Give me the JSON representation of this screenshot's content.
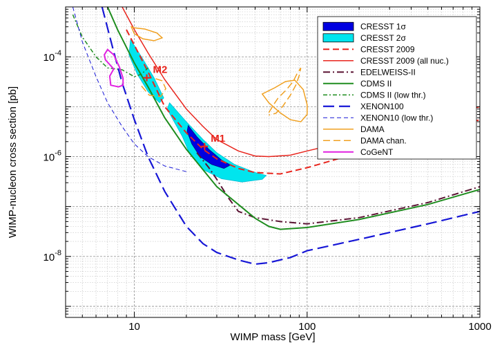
{
  "chart_data": {
    "type": "line",
    "xscale": "log",
    "yscale": "log",
    "xlim": [
      4,
      1000
    ],
    "ylim": [
      6e-10,
      0.001
    ],
    "xlabel": "WIMP mass [GeV]",
    "ylabel": "WIMP-nucleon cross section [pb]",
    "grid": true,
    "legend_position": "top-right",
    "x_ticks": [
      {
        "value": 10,
        "label": "10"
      },
      {
        "value": 100,
        "label": "100"
      },
      {
        "value": 1000,
        "label": "1000"
      }
    ],
    "y_ticks": [
      {
        "value": 0.0001,
        "base": "10",
        "exp": "-4"
      },
      {
        "value": 1e-06,
        "base": "10",
        "exp": "-6"
      },
      {
        "value": 1e-08,
        "base": "10",
        "exp": "-8"
      }
    ],
    "regions": [
      {
        "name": "CRESST 2σ",
        "color": "#00e5ee",
        "stroke": "#00bcd4",
        "points": [
          [
            16,
            1.2e-05
          ],
          [
            20,
            5e-06
          ],
          [
            25,
            2.2e-06
          ],
          [
            30,
            1.2e-06
          ],
          [
            38,
            7e-07
          ],
          [
            50,
            4.8e-07
          ],
          [
            58,
            4.2e-07
          ],
          [
            55,
            3.5e-07
          ],
          [
            42,
            3.1e-07
          ],
          [
            32,
            3.6e-07
          ],
          [
            25,
            5.5e-07
          ],
          [
            21,
            1.1e-06
          ],
          [
            19,
            2.5e-06
          ],
          [
            16.5,
            6e-06
          ],
          [
            15.5,
            9e-06
          ]
        ]
      },
      {
        "name": "CRESST 2σ",
        "color": "#00e5ee",
        "stroke": "#00bcd4",
        "points": [
          [
            9.5,
            0.00022
          ],
          [
            11,
            0.0001
          ],
          [
            13,
            3.8e-05
          ],
          [
            14.8,
            1.5e-05
          ],
          [
            14,
            1.2e-05
          ],
          [
            12,
            2e-05
          ],
          [
            10.4,
            4.5e-05
          ],
          [
            9.3,
            0.00011
          ]
        ]
      },
      {
        "name": "CRESST 1σ",
        "color": "#0000e0",
        "stroke": "#000080",
        "points": [
          [
            20.5,
            4.2e-06
          ],
          [
            23,
            2.5e-06
          ],
          [
            27,
            1.4e-06
          ],
          [
            32,
            8.5e-07
          ],
          [
            36,
            6.8e-07
          ],
          [
            33,
            5.8e-07
          ],
          [
            28,
            7e-07
          ],
          [
            24,
            1e-06
          ],
          [
            21.5,
            1.8e-06
          ],
          [
            20.2,
            3.2e-06
          ]
        ]
      }
    ],
    "series": [
      {
        "name": "CRESST 1σ",
        "color": "#0000e0",
        "dash": "none",
        "width": 1,
        "legend_type": "fill",
        "points": []
      },
      {
        "name": "CRESST 2σ",
        "color": "#00e5ee",
        "dash": "none",
        "width": 1,
        "legend_type": "fill",
        "points": []
      },
      {
        "name": "CRESST 2009",
        "color": "#e8241c",
        "dash": "9,5",
        "width": 2,
        "points": [
          [
            9,
            0.00035
          ],
          [
            12,
            5e-05
          ],
          [
            15,
            1e-05
          ],
          [
            20,
            3e-06
          ],
          [
            25,
            1.4e-06
          ],
          [
            30,
            9e-07
          ],
          [
            40,
            5.8e-07
          ],
          [
            50,
            4.8e-07
          ],
          [
            70,
            4.5e-07
          ],
          [
            100,
            6e-07
          ],
          [
            200,
            1.2e-06
          ],
          [
            500,
            2.7e-06
          ],
          [
            1000,
            5.5e-06
          ]
        ]
      },
      {
        "name": "CRESST 2009 (all nuc.)",
        "color": "#e8241c",
        "dash": "none",
        "width": 1.5,
        "points": [
          [
            8.5,
            0.001
          ],
          [
            10,
            0.00035
          ],
          [
            12,
            0.00012
          ],
          [
            15,
            3.5e-05
          ],
          [
            20,
            9e-06
          ],
          [
            25,
            4e-06
          ],
          [
            30,
            2.2e-06
          ],
          [
            40,
            1.3e-06
          ],
          [
            50,
            1.03e-06
          ],
          [
            60,
            1e-06
          ],
          [
            80,
            1.07e-06
          ],
          [
            100,
            1.3e-06
          ],
          [
            200,
            2.3e-06
          ],
          [
            500,
            5e-06
          ],
          [
            1000,
            1e-05
          ]
        ]
      },
      {
        "name": "EDELWEISS-II",
        "color": "#5a1232",
        "dash": "10,4,2,4",
        "width": 2,
        "points": [
          [
            23,
            1.2e-06
          ],
          [
            27,
            6e-07
          ],
          [
            30,
            3.5e-07
          ],
          [
            35,
            1.5e-07
          ],
          [
            40,
            8e-08
          ],
          [
            50,
            6e-08
          ],
          [
            70,
            5e-08
          ],
          [
            100,
            4.5e-08
          ],
          [
            200,
            6e-08
          ],
          [
            500,
            1.2e-07
          ],
          [
            1000,
            2.5e-07
          ]
        ]
      },
      {
        "name": "CDMS II",
        "color": "#1e8c1e",
        "dash": "none",
        "width": 2,
        "points": [
          [
            7,
            0.001
          ],
          [
            8,
            0.00035
          ],
          [
            10,
            7.5e-05
          ],
          [
            12,
            2.5e-05
          ],
          [
            15,
            6e-06
          ],
          [
            20,
            1.4e-06
          ],
          [
            30,
            2.5e-07
          ],
          [
            40,
            1.1e-07
          ],
          [
            50,
            5.8e-08
          ],
          [
            60,
            4e-08
          ],
          [
            70,
            3.5e-08
          ],
          [
            100,
            3.8e-08
          ],
          [
            200,
            5.5e-08
          ],
          [
            500,
            1.1e-07
          ],
          [
            1000,
            2.2e-07
          ]
        ]
      },
      {
        "name": "CDMS II (low thr.)",
        "color": "#1e8c1e",
        "dash": "6,3,2,3",
        "width": 1.5,
        "points": [
          [
            4.4,
            0.0007
          ],
          [
            5,
            0.00025
          ],
          [
            6,
            0.0001
          ],
          [
            7,
            6e-05
          ],
          [
            8.5,
            5.5e-05
          ],
          [
            10,
            4e-05
          ],
          [
            11,
            4.5e-05
          ],
          [
            12,
            6e-05
          ]
        ]
      },
      {
        "name": "XENON100",
        "color": "#1616d6",
        "dash": "16,7",
        "width": 2.2,
        "points": [
          [
            6.5,
            0.001
          ],
          [
            7.5,
            0.00015
          ],
          [
            8.5,
            3e-05
          ],
          [
            10,
            5.5e-06
          ],
          [
            12,
            1e-06
          ],
          [
            15,
            2e-07
          ],
          [
            20,
            4e-08
          ],
          [
            25,
            1.8e-08
          ],
          [
            30,
            1.2e-08
          ],
          [
            40,
            8.5e-09
          ],
          [
            50,
            7e-09
          ],
          [
            60,
            7.5e-09
          ],
          [
            80,
            9.5e-09
          ],
          [
            100,
            1.3e-08
          ],
          [
            200,
            2.2e-08
          ],
          [
            500,
            4.5e-08
          ],
          [
            1000,
            8e-08
          ]
        ]
      },
      {
        "name": "XENON10 (low thr.)",
        "color": "#1616d6",
        "dash": "6,4",
        "width": 1,
        "points": [
          [
            4.4,
            0.001
          ],
          [
            5,
            0.0002
          ],
          [
            6,
            4e-05
          ],
          [
            7,
            1.2e-05
          ],
          [
            8.5,
            4e-06
          ],
          [
            10,
            1.8e-06
          ],
          [
            12,
            1e-06
          ],
          [
            15,
            6.5e-07
          ],
          [
            18,
            5.5e-07
          ],
          [
            20,
            5e-07
          ]
        ]
      },
      {
        "name": "DAMA",
        "color": "#f0a020",
        "dash": "none",
        "width": 1.5,
        "closed": true,
        "points": [
          [
            9.6,
            0.0004
          ],
          [
            10,
            0.00029
          ],
          [
            11.2,
            0.00023
          ],
          [
            13,
            0.00021
          ],
          [
            14.5,
            0.00024
          ],
          [
            13.5,
            0.0003
          ],
          [
            11.5,
            0.00036
          ],
          [
            10,
            0.00038
          ]
        ],
        "extra": [
          [
            [
              55,
              1.8e-05
            ],
            [
              60,
              1.2e-05
            ],
            [
              70,
              7.5e-06
            ],
            [
              80,
              5.5e-06
            ],
            [
              92,
              5e-06
            ],
            [
              100,
              7e-06
            ],
            [
              100,
              1.1e-05
            ],
            [
              95,
              2.2e-05
            ],
            [
              85,
              3.4e-05
            ],
            [
              75,
              3.2e-05
            ],
            [
              65,
              2.4e-05
            ]
          ]
        ]
      },
      {
        "name": "DAMA chan.",
        "color": "#f0a020",
        "dash": "10,5",
        "width": 1.5,
        "closed": false,
        "points": [
          [
            11,
            2.6e-05
          ],
          [
            12.2,
            1.7e-05
          ],
          [
            14.2,
            1.6e-05
          ],
          [
            15.2,
            2.3e-05
          ],
          [
            14.5,
            3.3e-05
          ],
          [
            13.1,
            3.7e-05
          ]
        ],
        "extra": [
          [
            [
              60,
              7.6e-06
            ],
            [
              64,
              1.1e-05
            ],
            [
              68,
              1.5e-05
            ],
            [
              76,
              2.2e-05
            ],
            [
              83,
              3.2e-05
            ],
            [
              88,
              4.8e-05
            ],
            [
              92,
              6e-05
            ],
            [
              90,
              4.2e-05
            ],
            [
              86,
              2.7e-05
            ],
            [
              80,
              1.7e-05
            ],
            [
              72,
              1e-05
            ],
            [
              66,
              7.4e-06
            ],
            [
              60,
              6.8e-06
            ]
          ]
        ]
      },
      {
        "name": "CoGeNT",
        "color": "#e020e0",
        "dash": "none",
        "width": 2,
        "closed": true,
        "points": [
          [
            6.7,
            0.00011
          ],
          [
            7,
            0.00014
          ],
          [
            7.6,
            0.00011
          ],
          [
            8.2,
            6.2e-05
          ],
          [
            8.6,
            3.7e-05
          ],
          [
            8.6,
            2.7e-05
          ],
          [
            8.1,
            2.5e-05
          ],
          [
            7.3,
            2.7e-05
          ],
          [
            7.2,
            4.1e-05
          ],
          [
            7.6,
            5.7e-05
          ],
          [
            6.8,
            8.7e-05
          ]
        ]
      }
    ],
    "annotations": [
      {
        "label": "M1",
        "x": 25.5,
        "y": 1.6e-06,
        "color": "#e8241c"
      },
      {
        "label": "M2",
        "x": 11.8,
        "y": 3.8e-05,
        "color": "#e8241c"
      }
    ]
  }
}
